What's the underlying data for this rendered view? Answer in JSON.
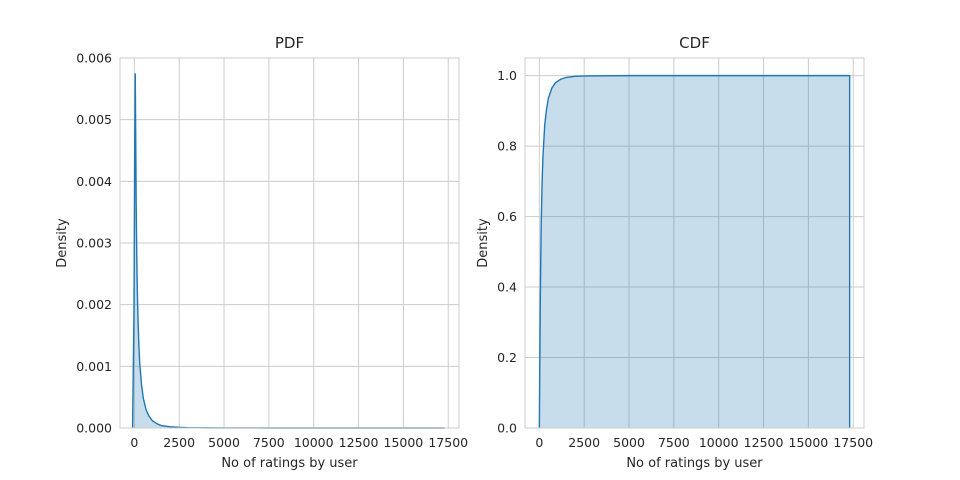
{
  "chart_data": [
    {
      "type": "area",
      "title": "PDF",
      "xlabel": "No of ratings by user",
      "ylabel": "Density",
      "xlim": [
        -800,
        18100
      ],
      "ylim": [
        0,
        0.006
      ],
      "xticks": [
        0,
        2500,
        5000,
        7500,
        10000,
        12500,
        15000,
        17500
      ],
      "xtick_labels": [
        "0",
        "2500",
        "5000",
        "7500",
        "10000",
        "12500",
        "15000",
        "17500"
      ],
      "yticks": [
        0.0,
        0.001,
        0.002,
        0.003,
        0.004,
        0.005,
        0.006
      ],
      "ytick_labels": [
        "0.000",
        "0.001",
        "0.002",
        "0.003",
        "0.004",
        "0.005",
        "0.006"
      ],
      "grid": true,
      "color": "#1f77b4",
      "series": [
        {
          "x": [
            -100,
            -20,
            0,
            20,
            50,
            80,
            100,
            130,
            160,
            200,
            250,
            300,
            400,
            500,
            650,
            800,
            1000,
            1250,
            1500,
            2000,
            2500,
            3000,
            4000,
            5000,
            7500,
            10000,
            12500,
            15000,
            17300
          ],
          "y": [
            0.0,
            0.0019,
            0.0031,
            0.0045,
            0.00575,
            0.0046,
            0.0037,
            0.0029,
            0.0023,
            0.0018,
            0.00135,
            0.00105,
            0.0007,
            0.00048,
            0.0003,
            0.0002,
            0.00012,
            7e-05,
            4e-05,
            2e-05,
            1e-05,
            5e-06,
            2e-06,
            1e-06,
            0.0,
            0.0,
            0.0,
            0.0,
            0.0
          ]
        }
      ]
    },
    {
      "type": "area",
      "title": "CDF",
      "xlabel": "No of ratings by user",
      "ylabel": "Density",
      "xlim": [
        -800,
        18100
      ],
      "ylim": [
        0,
        1.05
      ],
      "xticks": [
        0,
        2500,
        5000,
        7500,
        10000,
        12500,
        15000,
        17500
      ],
      "xtick_labels": [
        "0",
        "2500",
        "5000",
        "7500",
        "10000",
        "12500",
        "15000",
        "17500"
      ],
      "yticks": [
        0.0,
        0.2,
        0.4,
        0.6,
        0.8,
        1.0
      ],
      "ytick_labels": [
        "0.0",
        "0.2",
        "0.4",
        "0.6",
        "0.8",
        "1.0"
      ],
      "grid": true,
      "color": "#1f77b4",
      "series": [
        {
          "x": [
            0,
            50,
            100,
            150,
            200,
            300,
            400,
            500,
            700,
            900,
            1200,
            1500,
            2000,
            2500,
            5000,
            10000,
            17300
          ],
          "y": [
            0.0,
            0.35,
            0.57,
            0.69,
            0.77,
            0.86,
            0.905,
            0.935,
            0.965,
            0.98,
            0.99,
            0.995,
            0.998,
            0.999,
            1.0,
            1.0,
            1.0
          ]
        }
      ]
    }
  ]
}
